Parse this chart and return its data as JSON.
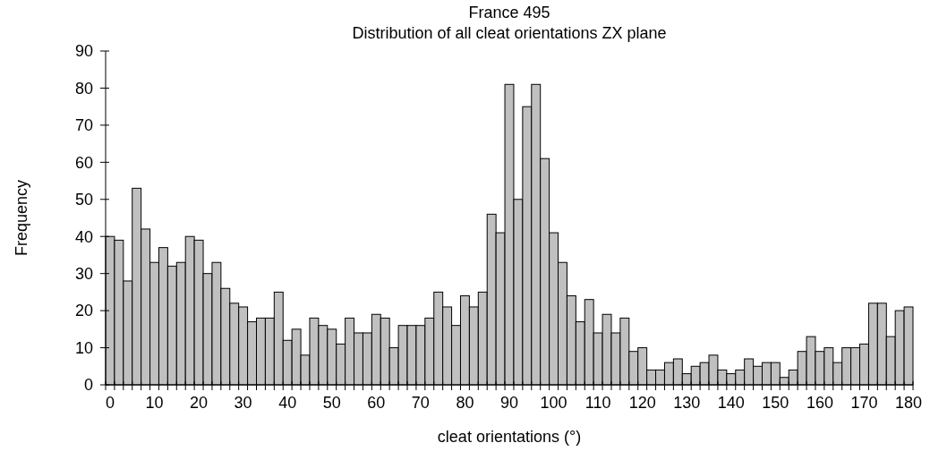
{
  "chart_data": {
    "type": "bar",
    "title": "France 495",
    "subtitle": "Distribution of all cleat orientations ZX plane",
    "xlabel": "cleat orientations (°)",
    "ylabel": "Frequency",
    "categories": [
      "0",
      null,
      null,
      null,
      null,
      "10",
      null,
      null,
      null,
      null,
      "20",
      null,
      null,
      null,
      null,
      "30",
      null,
      null,
      null,
      null,
      "40",
      null,
      null,
      null,
      null,
      "50",
      null,
      null,
      null,
      null,
      "60",
      null,
      null,
      null,
      null,
      "70",
      null,
      null,
      null,
      null,
      "80",
      null,
      null,
      null,
      null,
      "90",
      null,
      null,
      null,
      null,
      "100",
      null,
      null,
      null,
      null,
      "110",
      null,
      null,
      null,
      null,
      "120",
      null,
      null,
      null,
      null,
      "130",
      null,
      null,
      null,
      null,
      "140",
      null,
      null,
      null,
      null,
      "150",
      null,
      null,
      null,
      null,
      "160",
      null,
      null,
      null,
      null,
      "170",
      null,
      null,
      null,
      null,
      "180"
    ],
    "values": [
      40,
      39,
      28,
      53,
      42,
      33,
      37,
      32,
      33,
      40,
      39,
      30,
      33,
      26,
      22,
      21,
      17,
      18,
      18,
      25,
      12,
      15,
      8,
      18,
      16,
      15,
      11,
      18,
      14,
      14,
      19,
      18,
      10,
      16,
      16,
      16,
      18,
      25,
      21,
      16,
      24,
      21,
      25,
      46,
      41,
      81,
      50,
      75,
      81,
      61,
      41,
      33,
      24,
      17,
      23,
      14,
      19,
      14,
      18,
      9,
      10,
      4,
      4,
      6,
      7,
      3,
      5,
      6,
      8,
      4,
      3,
      4,
      7,
      5,
      6,
      6,
      2,
      4,
      9,
      13,
      9,
      10,
      6,
      10,
      10,
      11,
      22,
      22,
      13,
      20,
      21
    ],
    "color": "#c0c0c0",
    "ylim": [
      0,
      90
    ],
    "yticks": [
      0,
      10,
      20,
      30,
      40,
      50,
      60,
      70,
      80,
      90
    ],
    "grid": false
  }
}
